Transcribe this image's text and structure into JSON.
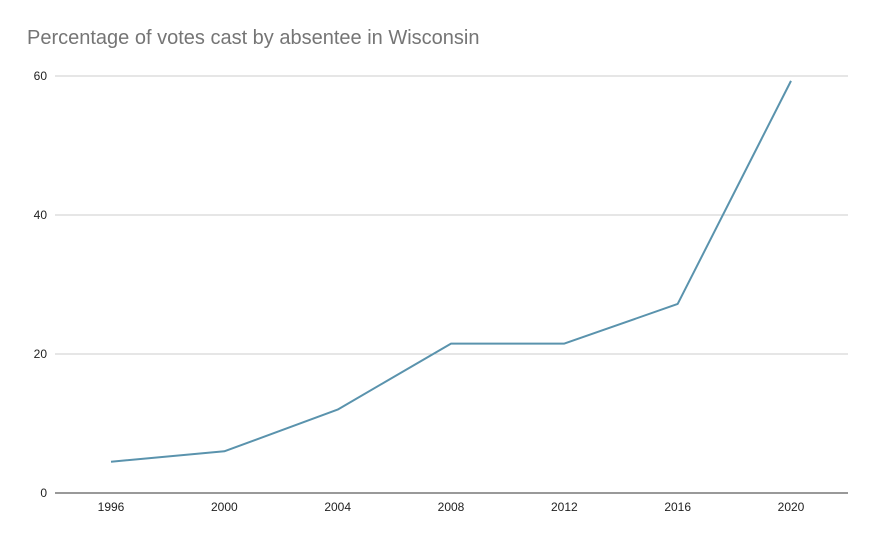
{
  "chart_data": {
    "type": "line",
    "title": "Percentage of votes cast by absentee in Wisconsin",
    "xlabel": "",
    "ylabel": "",
    "x": [
      1996,
      2000,
      2004,
      2008,
      2012,
      2016,
      2020
    ],
    "x_tick_labels": [
      "1996",
      "2000",
      "2004",
      "2008",
      "2012",
      "2016",
      "2020"
    ],
    "series": [
      {
        "values": [
          4.5,
          6.0,
          12.0,
          21.5,
          21.5,
          27.2,
          59.3
        ],
        "color": "#5a93ad"
      }
    ],
    "xlim": [
      1996,
      2020
    ],
    "ylim": [
      0,
      60
    ],
    "y_ticks": [
      0,
      20,
      40,
      60
    ],
    "y_tick_labels": [
      "0",
      "20",
      "40",
      "60"
    ],
    "grid": true,
    "legend": "none"
  }
}
